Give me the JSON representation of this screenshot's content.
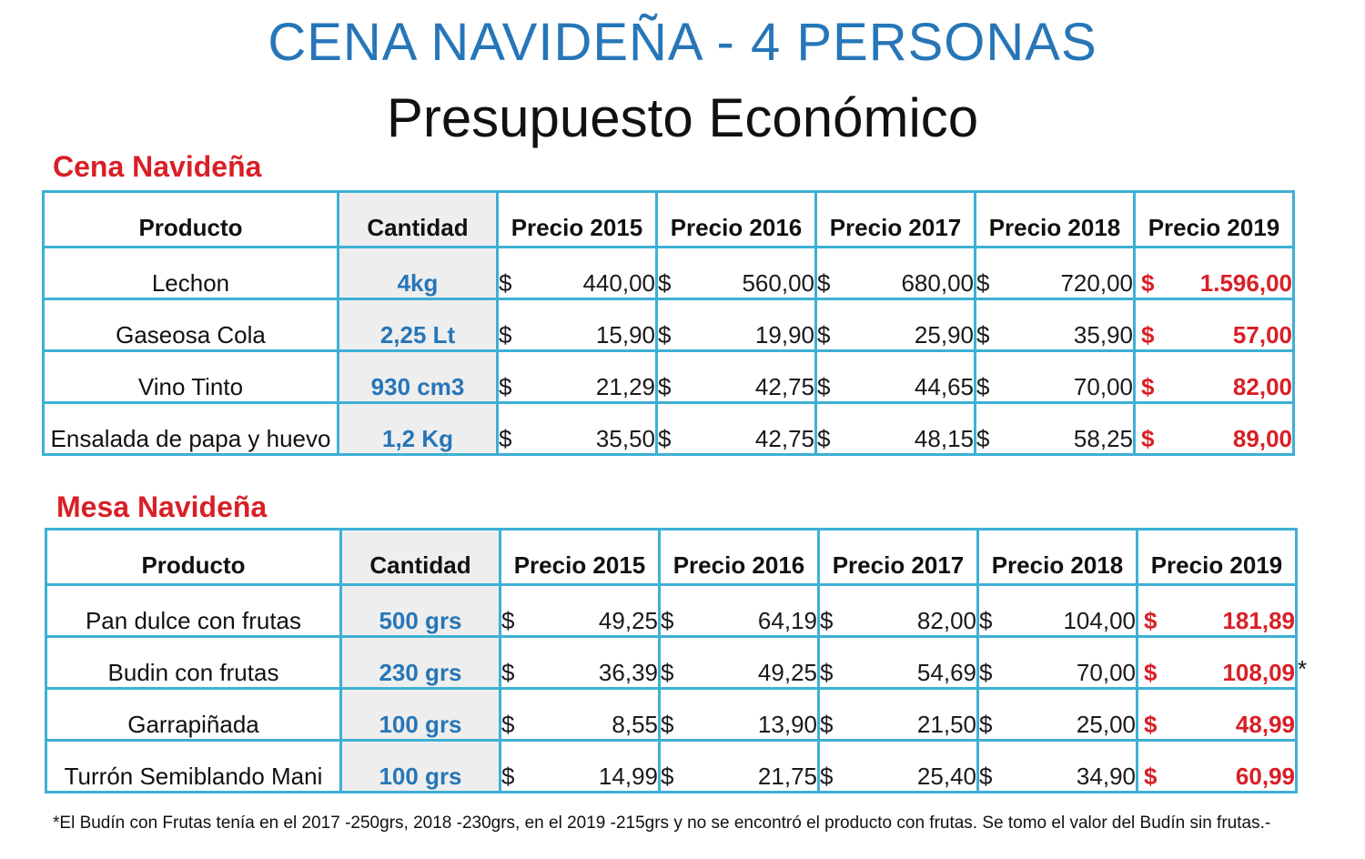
{
  "header": {
    "title": "CENA NAVIDEÑA - 4 PERSONAS",
    "subtitle": "Presupuesto Económico"
  },
  "columns": {
    "producto": "Producto",
    "cantidad": "Cantidad",
    "precio_2015": "Precio 2015",
    "precio_2016": "Precio 2016",
    "precio_2017": "Precio 2017",
    "precio_2018": "Precio 2018",
    "precio_2019": "Precio 2019"
  },
  "currency_symbol": "$",
  "colors": {
    "title_blue": "#2676b8",
    "heading_red": "#d91f26",
    "border_cyan": "#3db0d4",
    "quantity_bg": "#eeeeee"
  },
  "cena": {
    "heading": "Cena Navideña",
    "rows": [
      {
        "producto": "Lechon",
        "cantidad": "4kg",
        "p2015": "440,00",
        "p2016": "560,00",
        "p2017": "680,00",
        "p2018": "720,00",
        "p2019": "1.596,00"
      },
      {
        "producto": "Gaseosa Cola",
        "cantidad": "2,25 Lt",
        "p2015": "15,90",
        "p2016": "19,90",
        "p2017": "25,90",
        "p2018": "35,90",
        "p2019": "57,00"
      },
      {
        "producto": "Vino Tinto",
        "cantidad": "930  cm3",
        "p2015": "21,29",
        "p2016": "42,75",
        "p2017": "44,65",
        "p2018": "70,00",
        "p2019": "82,00"
      },
      {
        "producto": "Ensalada de papa y huevo",
        "cantidad": "1,2 Kg",
        "p2015": "35,50",
        "p2016": "42,75",
        "p2017": "48,15",
        "p2018": "58,25",
        "p2019": "89,00"
      }
    ]
  },
  "mesa": {
    "heading": "Mesa Navideña",
    "rows": [
      {
        "producto": "Pan dulce con frutas",
        "cantidad": "500 grs",
        "p2015": "49,25",
        "p2016": "64,19",
        "p2017": "82,00",
        "p2018": "104,00",
        "p2019": "181,89"
      },
      {
        "producto": "Budin con frutas",
        "cantidad": "230 grs",
        "p2015": "36,39",
        "p2016": "49,25",
        "p2017": "54,69",
        "p2018": "70,00",
        "p2019": "108,09"
      },
      {
        "producto": "Garrapiñada",
        "cantidad": "100 grs",
        "p2015": "8,55",
        "p2016": "13,90",
        "p2017": "21,50",
        "p2018": "25,00",
        "p2019": "48,99"
      },
      {
        "producto": "Turrón Semiblando Mani",
        "cantidad": "100 grs",
        "p2015": "14,99",
        "p2016": "21,75",
        "p2017": "25,40",
        "p2018": "34,90",
        "p2019": "60,99"
      }
    ],
    "asterisk": "*"
  },
  "footnote": "*El Budín con Frutas  tenía  en  el 2017 -250grs, 2018 -230grs, en el 2019 -215grs y no se encontró el producto con frutas. Se tomo el  valor  del Budín sin frutas.-"
}
